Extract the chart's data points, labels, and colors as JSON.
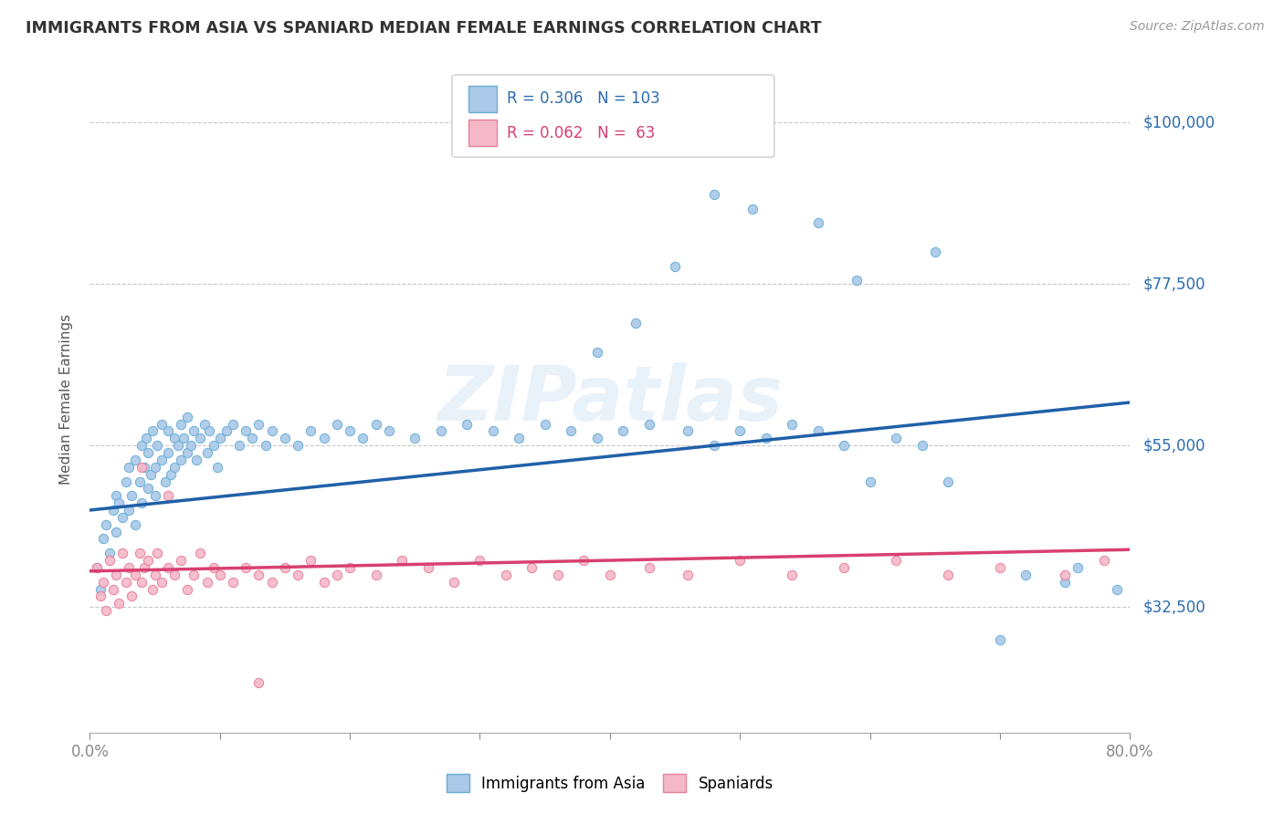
{
  "title": "IMMIGRANTS FROM ASIA VS SPANIARD MEDIAN FEMALE EARNINGS CORRELATION CHART",
  "source_text": "Source: ZipAtlas.com",
  "ylabel": "Median Female Earnings",
  "xlim": [
    0.0,
    0.8
  ],
  "ylim": [
    15000,
    108000
  ],
  "yticks": [
    32500,
    55000,
    77500,
    100000
  ],
  "ytick_labels": [
    "$32,500",
    "$55,000",
    "$77,500",
    "$100,000"
  ],
  "xtick_positions": [
    0.0,
    0.1,
    0.2,
    0.3,
    0.4,
    0.5,
    0.6,
    0.7,
    0.8
  ],
  "blue_color": "#aac8e8",
  "blue_edge_color": "#6aaed6",
  "pink_color": "#f4b8c8",
  "pink_edge_color": "#e8809a",
  "blue_line_color": "#2060a8",
  "pink_line_color": "#d84070",
  "legend_blue_R": "0.306",
  "legend_blue_N": "103",
  "legend_pink_R": "0.062",
  "legend_pink_N": " 63",
  "legend_label_blue": "Immigrants from Asia",
  "legend_label_pink": "Spaniards",
  "watermark": "ZIPatlas",
  "background_color": "#ffffff",
  "grid_color": "#c8c8c8",
  "title_color": "#333333",
  "axis_label_color": "#555555",
  "ytick_label_color": "#2b6cb0",
  "blue_scatter_x": [
    0.005,
    0.008,
    0.01,
    0.012,
    0.015,
    0.018,
    0.02,
    0.02,
    0.022,
    0.025,
    0.028,
    0.03,
    0.03,
    0.032,
    0.035,
    0.035,
    0.038,
    0.04,
    0.04,
    0.042,
    0.043,
    0.045,
    0.045,
    0.047,
    0.048,
    0.05,
    0.05,
    0.052,
    0.055,
    0.055,
    0.058,
    0.06,
    0.06,
    0.062,
    0.065,
    0.065,
    0.068,
    0.07,
    0.07,
    0.072,
    0.075,
    0.075,
    0.078,
    0.08,
    0.082,
    0.085,
    0.088,
    0.09,
    0.092,
    0.095,
    0.098,
    0.1,
    0.105,
    0.11,
    0.115,
    0.12,
    0.125,
    0.13,
    0.135,
    0.14,
    0.15,
    0.16,
    0.17,
    0.18,
    0.19,
    0.2,
    0.21,
    0.22,
    0.23,
    0.25,
    0.27,
    0.29,
    0.31,
    0.33,
    0.35,
    0.37,
    0.39,
    0.41,
    0.43,
    0.46,
    0.48,
    0.5,
    0.52,
    0.54,
    0.56,
    0.58,
    0.6,
    0.62,
    0.64,
    0.66,
    0.39,
    0.42,
    0.45,
    0.48,
    0.51,
    0.56,
    0.59,
    0.65,
    0.7,
    0.75,
    0.72,
    0.76,
    0.79
  ],
  "blue_scatter_y": [
    38000,
    35000,
    42000,
    44000,
    40000,
    46000,
    48000,
    43000,
    47000,
    45000,
    50000,
    46000,
    52000,
    48000,
    53000,
    44000,
    50000,
    55000,
    47000,
    52000,
    56000,
    49000,
    54000,
    51000,
    57000,
    52000,
    48000,
    55000,
    53000,
    58000,
    50000,
    57000,
    54000,
    51000,
    56000,
    52000,
    55000,
    58000,
    53000,
    56000,
    54000,
    59000,
    55000,
    57000,
    53000,
    56000,
    58000,
    54000,
    57000,
    55000,
    52000,
    56000,
    57000,
    58000,
    55000,
    57000,
    56000,
    58000,
    55000,
    57000,
    56000,
    55000,
    57000,
    56000,
    58000,
    57000,
    56000,
    58000,
    57000,
    56000,
    57000,
    58000,
    57000,
    56000,
    58000,
    57000,
    56000,
    57000,
    58000,
    57000,
    55000,
    57000,
    56000,
    58000,
    57000,
    55000,
    50000,
    56000,
    55000,
    50000,
    68000,
    72000,
    80000,
    90000,
    88000,
    86000,
    78000,
    82000,
    28000,
    36000,
    37000,
    38000,
    35000
  ],
  "pink_scatter_x": [
    0.005,
    0.008,
    0.01,
    0.012,
    0.015,
    0.018,
    0.02,
    0.022,
    0.025,
    0.028,
    0.03,
    0.032,
    0.035,
    0.038,
    0.04,
    0.042,
    0.045,
    0.048,
    0.05,
    0.052,
    0.055,
    0.06,
    0.065,
    0.07,
    0.075,
    0.08,
    0.085,
    0.09,
    0.095,
    0.1,
    0.11,
    0.12,
    0.13,
    0.14,
    0.15,
    0.16,
    0.17,
    0.18,
    0.19,
    0.2,
    0.22,
    0.24,
    0.26,
    0.28,
    0.3,
    0.32,
    0.34,
    0.36,
    0.38,
    0.4,
    0.43,
    0.46,
    0.5,
    0.54,
    0.58,
    0.62,
    0.66,
    0.7,
    0.75,
    0.78,
    0.04,
    0.06,
    0.13
  ],
  "pink_scatter_y": [
    38000,
    34000,
    36000,
    32000,
    39000,
    35000,
    37000,
    33000,
    40000,
    36000,
    38000,
    34000,
    37000,
    40000,
    36000,
    38000,
    39000,
    35000,
    37000,
    40000,
    36000,
    38000,
    37000,
    39000,
    35000,
    37000,
    40000,
    36000,
    38000,
    37000,
    36000,
    38000,
    37000,
    36000,
    38000,
    37000,
    39000,
    36000,
    37000,
    38000,
    37000,
    39000,
    38000,
    36000,
    39000,
    37000,
    38000,
    37000,
    39000,
    37000,
    38000,
    37000,
    39000,
    37000,
    38000,
    39000,
    37000,
    38000,
    37000,
    39000,
    52000,
    48000,
    22000
  ],
  "blue_trend_x": [
    0.0,
    0.8
  ],
  "blue_trend_y": [
    46000,
    61000
  ],
  "pink_trend_x": [
    0.0,
    0.8
  ],
  "pink_trend_y": [
    37500,
    40500
  ]
}
